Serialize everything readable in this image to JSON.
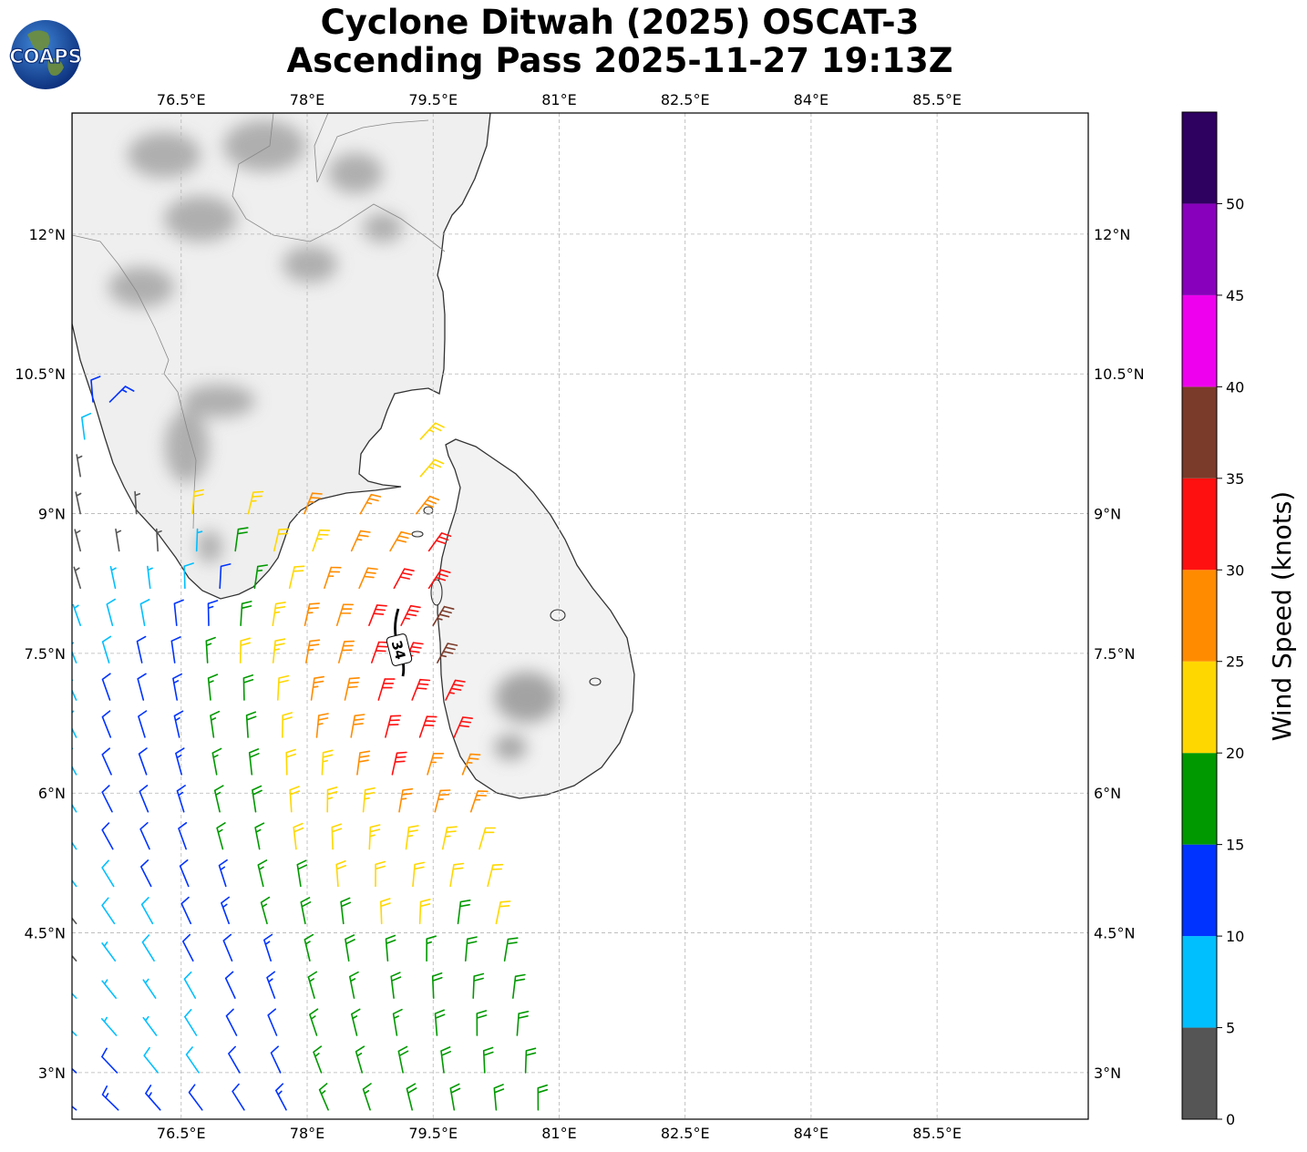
{
  "header": {
    "title_line1": "Cyclone Ditwah (2025) OSCAT-3",
    "title_line2": "Ascending Pass 2025-11-27 19:13Z",
    "logo_text": "COAPS"
  },
  "chart_data": {
    "type": "map-wind-barbs",
    "title": "Cyclone Ditwah (2025) OSCAT-3 Ascending Pass 2025-11-27 19:13Z",
    "lon_range": [
      75.2,
      87.3
    ],
    "lat_range": [
      2.5,
      13.3
    ],
    "lon_ticks": [
      76.5,
      78,
      79.5,
      81,
      82.5,
      84,
      85.5
    ],
    "lon_tick_labels": [
      "76.5°E",
      "78°E",
      "79.5°E",
      "81°E",
      "82.5°E",
      "84°E",
      "85.5°E"
    ],
    "lat_ticks": [
      3,
      4.5,
      6,
      7.5,
      9,
      10.5,
      12
    ],
    "lat_tick_labels": [
      "3°N",
      "4.5°N",
      "6°N",
      "7.5°N",
      "9°N",
      "10.5°N",
      "12°N"
    ],
    "grid": true,
    "contour_label": "34",
    "colorbar": {
      "label": "Wind Speed (knots)",
      "range": [
        0,
        55
      ],
      "bounds": [
        0,
        5,
        10,
        15,
        20,
        25,
        30,
        35,
        40,
        45,
        50,
        55
      ],
      "tick_values": [
        0,
        5,
        10,
        15,
        20,
        25,
        30,
        35,
        40,
        45,
        50
      ],
      "tick_labels": [
        "0",
        "5",
        "10",
        "15",
        "20",
        "25",
        "30",
        "35",
        "40",
        "45",
        "50"
      ],
      "colors": [
        "#555555",
        "#00bfff",
        "#0033ff",
        "#009900",
        "#ffd700",
        "#ff8c00",
        "#ff1010",
        "#7b3b2a",
        "#ee00ee",
        "#8800bb",
        "#2e0060"
      ]
    },
    "wind_swath": {
      "rows": [
        {
          "lat": 2.6,
          "lon_start": 75.25,
          "lon_end": 80.75,
          "speeds": [
            14,
            13,
            13,
            12,
            12,
            13,
            15,
            17,
            18,
            19,
            19,
            19
          ]
        },
        {
          "lat": 3.0,
          "lon_start": 75.25,
          "lon_end": 80.6,
          "speeds": [
            11,
            10,
            9,
            9,
            10,
            12,
            16,
            17,
            18,
            18,
            18,
            19
          ]
        },
        {
          "lat": 3.4,
          "lon_start": 75.25,
          "lon_end": 80.5,
          "speeds": [
            8,
            7,
            6,
            8,
            10,
            12,
            16,
            17,
            17,
            19,
            18,
            18
          ]
        },
        {
          "lat": 3.8,
          "lon_start": 75.25,
          "lon_end": 80.45,
          "speeds": [
            7,
            6,
            7,
            9,
            11,
            13,
            16,
            17,
            18,
            18,
            18,
            19
          ]
        },
        {
          "lat": 4.2,
          "lon_start": 75.25,
          "lon_end": 80.35,
          "speeds": [
            4,
            7,
            8,
            10,
            12,
            14,
            17,
            18,
            18,
            17,
            19,
            18
          ]
        },
        {
          "lat": 4.6,
          "lon_start": 75.25,
          "lon_end": 80.25,
          "speeds": [
            4,
            8,
            9,
            11,
            13,
            16,
            18,
            19,
            21,
            20,
            18,
            21
          ]
        },
        {
          "lat": 5.0,
          "lon_start": 75.25,
          "lon_end": 80.15,
          "speeds": [
            8,
            9,
            11,
            12,
            14,
            17,
            19,
            21,
            22,
            22,
            21,
            22
          ]
        },
        {
          "lat": 5.4,
          "lon_start": 75.25,
          "lon_end": 80.05,
          "speeds": [
            8,
            10,
            11,
            12,
            15,
            17,
            20,
            22,
            23,
            24,
            23,
            22
          ]
        },
        {
          "lat": 5.8,
          "lon_start": 75.25,
          "lon_end": 79.95,
          "speeds": [
            9,
            11,
            12,
            13,
            15,
            18,
            21,
            23,
            24,
            26,
            27,
            26
          ]
        },
        {
          "lat": 6.2,
          "lon_start": 75.25,
          "lon_end": 79.85,
          "speeds": [
            9,
            11,
            12,
            13,
            15,
            18,
            22,
            24,
            28,
            31,
            27,
            27
          ]
        },
        {
          "lat": 6.6,
          "lon_start": 75.25,
          "lon_end": 79.75,
          "speeds": [
            8,
            10,
            12,
            13,
            15,
            19,
            22,
            25,
            29,
            32,
            30,
            31
          ]
        },
        {
          "lat": 7.0,
          "lon_start": 75.25,
          "lon_end": 79.65,
          "speeds": [
            7,
            10,
            12,
            14,
            16,
            19,
            22,
            26,
            29,
            32,
            32,
            33
          ]
        },
        {
          "lat": 7.4,
          "lon_start": 75.25,
          "lon_end": 79.55,
          "speeds": [
            7,
            9,
            11,
            12,
            16,
            20,
            23,
            26,
            28,
            31,
            33,
            35
          ]
        },
        {
          "lat": 7.8,
          "lon_start": 75.3,
          "lon_end": 79.5,
          "speeds": [
            6,
            8,
            9,
            10,
            13,
            18,
            23,
            26,
            28,
            31,
            33,
            36
          ]
        },
        {
          "lat": 8.2,
          "lon_start": 75.3,
          "lon_end": 79.45,
          "speeds": [
            3,
            6,
            7,
            8,
            11,
            17,
            22,
            25,
            29,
            31,
            32
          ]
        },
        {
          "lat": 8.6,
          "lon_start": 75.3,
          "lon_end": 79.45,
          "speeds": [
            3,
            3,
            4,
            7,
            18,
            20,
            23,
            26,
            28,
            31
          ]
        },
        {
          "lat": 9.0,
          "lon_start": 75.3,
          "lon_end": 79.3,
          "speeds": [
            3,
            4,
            21,
            23,
            25,
            27,
            28
          ]
        },
        {
          "lat": 9.4,
          "lon_start": 75.3,
          "lon_end": 79.35,
          "speeds": [
            4,
            24
          ]
        },
        {
          "lat": 9.8,
          "lon_start": 75.35,
          "lon_end": 79.35,
          "speeds": [
            8,
            23
          ]
        },
        {
          "lat": 10.2,
          "lon_start": 75.45,
          "lon_end": 75.65,
          "speeds": [
            12,
            13
          ]
        }
      ]
    }
  }
}
